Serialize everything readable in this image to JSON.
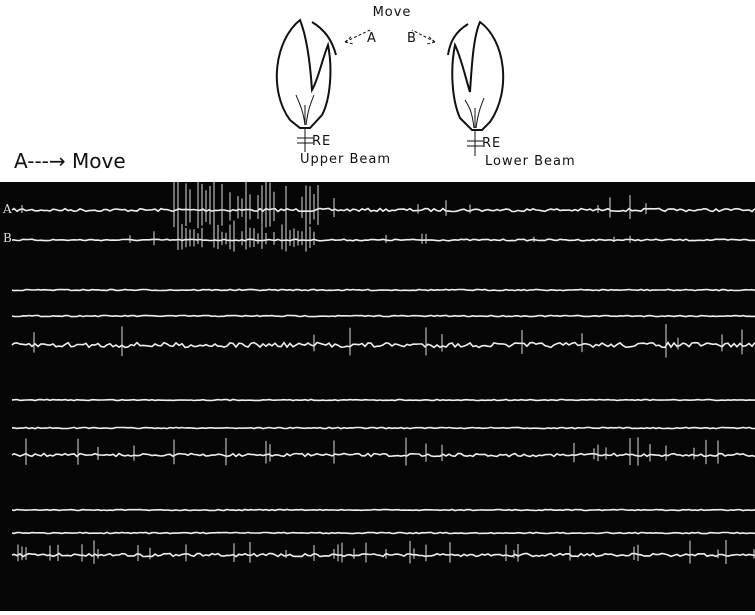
{
  "figure": {
    "diagram": {
      "move_label": "Move",
      "arrow_a_label": "A",
      "arrow_b_label": "B",
      "left_electrode": "RE",
      "left_caption": "Upper Beam",
      "right_electrode": "RE",
      "right_caption": "Lower Beam"
    },
    "heading": "A---→ Move",
    "traces": {
      "trace_a_label": "A",
      "trace_b_label": "B"
    }
  }
}
